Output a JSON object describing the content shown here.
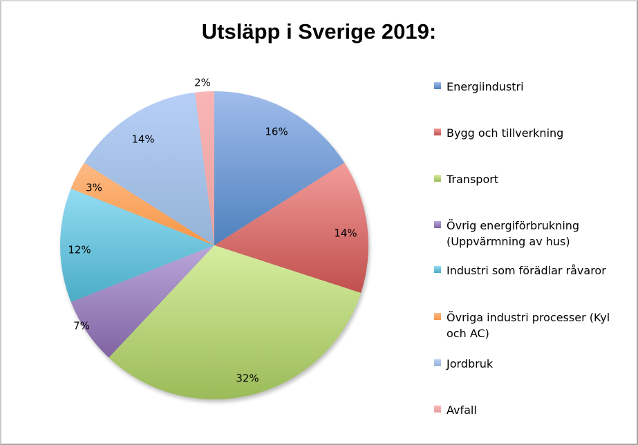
{
  "chart_data": {
    "type": "pie",
    "title": "Utsläpp i Sverige 2019:",
    "legend_position": "right",
    "categories": [
      "Energiindustri",
      "Bygg och tillverkning",
      "Transport",
      "Övrig energiförbrukning (Uppvärmning av hus)",
      "Industri som förädlar råvaror",
      "Övriga industri processer (Kyl och AC)",
      "Jordbruk",
      "Avfall"
    ],
    "values": [
      16,
      14,
      32,
      7,
      12,
      3,
      14,
      2
    ],
    "labels": [
      "16%",
      "14%",
      "32%",
      "7%",
      "12%",
      "3%",
      "14%",
      "2%"
    ],
    "colors": [
      "#4f81bd",
      "#c0504d",
      "#9bbb59",
      "#8064a2",
      "#4bacc6",
      "#f79646",
      "#95b3d7",
      "#e6a1a0"
    ],
    "colors_light": [
      "#a0bcec",
      "#f29c9a",
      "#d6eea0",
      "#bba7dc",
      "#93dcf3",
      "#fdba85",
      "#b7cff7",
      "#f9b5b5"
    ]
  },
  "legend": {
    "items": [
      {
        "label": "Energiindustri"
      },
      {
        "label": "Bygg och tillverkning"
      },
      {
        "label": "Transport"
      },
      {
        "label": "Övrig energiförbrukning\n(Uppvärmning av hus)"
      },
      {
        "label": "Industri som förädlar råvaror"
      },
      {
        "label": "Övriga industri processer (Kyl\noch AC)"
      },
      {
        "label": "Jordbruk"
      },
      {
        "label": "Avfall"
      }
    ]
  }
}
